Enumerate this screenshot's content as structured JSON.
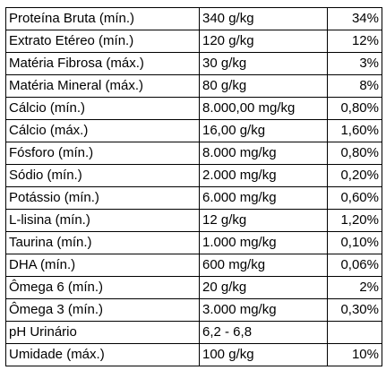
{
  "table": {
    "rows": [
      [
        "Proteína Bruta (mín.)",
        "340 g/kg",
        "34%"
      ],
      [
        "Extrato Etéreo (mín.)",
        "120 g/kg",
        "12%"
      ],
      [
        "Matéria Fibrosa (máx.)",
        "30 g/kg",
        "3%"
      ],
      [
        "Matéria Mineral (máx.)",
        "80 g/kg",
        "8%"
      ],
      [
        "Cálcio (mín.)",
        "8.000,00 mg/kg",
        "0,80%"
      ],
      [
        "Cálcio (máx.)",
        "16,00 g/kg",
        "1,60%"
      ],
      [
        "Fósforo (mín.)",
        "8.000 mg/kg",
        "0,80%"
      ],
      [
        "Sódio (mín.)",
        "2.000 mg/kg",
        "0,20%"
      ],
      [
        "Potássio (mín.)",
        "6.000 mg/kg",
        "0,60%"
      ],
      [
        "L-lisina (mín.)",
        "12 g/kg",
        "1,20%"
      ],
      [
        "Taurina (mín.)",
        "1.000 mg/kg",
        "0,10%"
      ],
      [
        "DHA (mín.)",
        "600 mg/kg",
        "0,06%"
      ],
      [
        "Ômega 6 (mín.)",
        "20 g/kg",
        "2%"
      ],
      [
        "Ômega 3 (mín.)",
        "3.000 mg/kg",
        "0,30%"
      ],
      [
        "pH Urinário",
        "6,2 - 6,8"
      ],
      [
        "Umidade (máx.)",
        "100 g/kg",
        "10%"
      ]
    ]
  }
}
